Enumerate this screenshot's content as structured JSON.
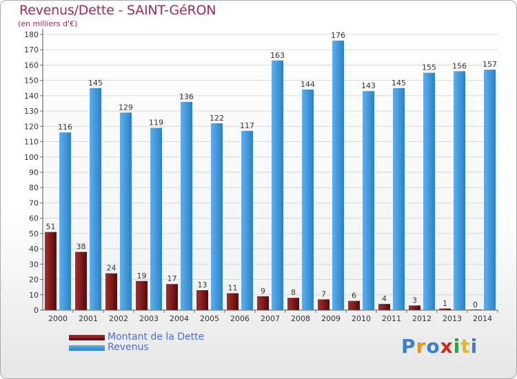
{
  "header": {
    "title": "Revenus/Dette - SAINT-GéRON",
    "subtitle": "(en milliers d'€)"
  },
  "legend": {
    "items": [
      {
        "label": "Montant de la Dette",
        "color": "#7a1010"
      },
      {
        "label": "Revenus",
        "color": "#3a8fd8"
      }
    ]
  },
  "logo": {
    "text": "Proxiti",
    "colors": [
      "#3a7fd0",
      "#e8901a",
      "#3a7fd0",
      "#d0281a",
      "#2aa040",
      "#e8b81a",
      "#3a7fd0"
    ]
  },
  "colors": {
    "debt_top": "#a03030",
    "debt_bottom": "#5a0808",
    "revenue_top": "#5fb0ea",
    "revenue_bottom": "#2a80c8",
    "grid": "#d8d8d8",
    "axis_text": "#333333"
  },
  "chart_data": {
    "type": "bar",
    "title": "Revenus/Dette - SAINT-GéRON",
    "ylabel": "(en milliers d'€)",
    "xlabel": "",
    "ylim": [
      0,
      180
    ],
    "yticks": [
      0,
      10,
      20,
      30,
      40,
      50,
      60,
      70,
      80,
      90,
      100,
      110,
      120,
      130,
      140,
      150,
      160,
      170,
      180
    ],
    "grid": true,
    "legend_position": "bottom-left",
    "categories": [
      "2000",
      "2001",
      "2002",
      "2003",
      "2004",
      "2005",
      "2006",
      "2007",
      "2008",
      "2009",
      "2010",
      "2011",
      "2012",
      "2013",
      "2014"
    ],
    "series": [
      {
        "name": "Montant de la Dette",
        "values": [
          51,
          38,
          24,
          19,
          17,
          13,
          11,
          9,
          8,
          7,
          6,
          4,
          3,
          1,
          0
        ]
      },
      {
        "name": "Revenus",
        "values": [
          116,
          145,
          129,
          119,
          136,
          122,
          117,
          163,
          144,
          176,
          143,
          145,
          155,
          156,
          157
        ]
      }
    ]
  }
}
